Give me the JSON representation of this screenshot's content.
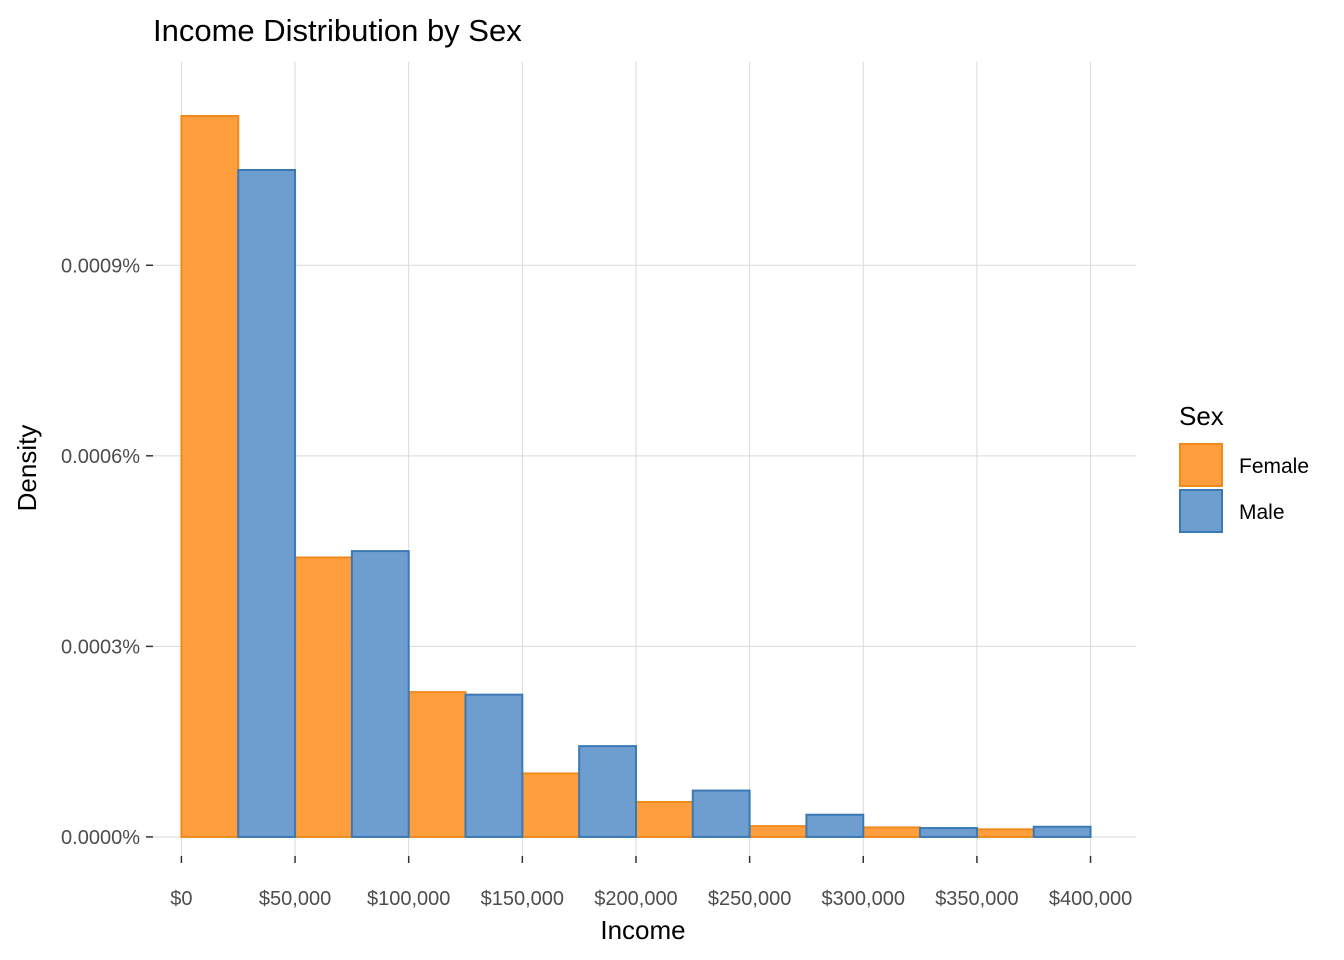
{
  "chart_data": {
    "type": "bar",
    "title": "Income Distribution by Sex",
    "xlabel": "Income",
    "ylabel": "Density",
    "x_ticks": [
      "$0",
      "$50,000",
      "$100,000",
      "$150,000",
      "$200,000",
      "$250,000",
      "$300,000",
      "$350,000",
      "$400,000"
    ],
    "x_tick_values": [
      0,
      50000,
      100000,
      150000,
      200000,
      250000,
      300000,
      350000,
      400000
    ],
    "y_ticks": [
      "0.0000%",
      "0.0003%",
      "0.0006%",
      "0.0009%"
    ],
    "y_tick_values": [
      0,
      0.0003,
      0.0006,
      0.0009
    ],
    "xlim": [
      -12500,
      420000
    ],
    "ylim": [
      -3e-05,
      0.00122
    ],
    "grid": true,
    "legend_placement": "right",
    "legend_title": "Sex",
    "bin_width": 25000,
    "series": [
      {
        "name": "Female",
        "color": "#FF9933",
        "edge_color": "#F08A1C",
        "x": [
          0,
          50000,
          100000,
          150000,
          200000,
          250000,
          300000,
          350000
        ],
        "values": [
          0.001135,
          0.00044,
          0.000228,
          0.0001,
          5.5e-05,
          1.7e-05,
          1.5e-05,
          1.2e-05
        ]
      },
      {
        "name": "Male",
        "color": "#6699CC",
        "edge_color": "#3A79B4",
        "x": [
          25000,
          75000,
          125000,
          175000,
          225000,
          275000,
          325000,
          375000
        ],
        "values": [
          0.00105,
          0.00045,
          0.000224,
          0.000143,
          7.3e-05,
          3.5e-05,
          1.4e-05,
          1.6e-05
        ]
      }
    ]
  }
}
